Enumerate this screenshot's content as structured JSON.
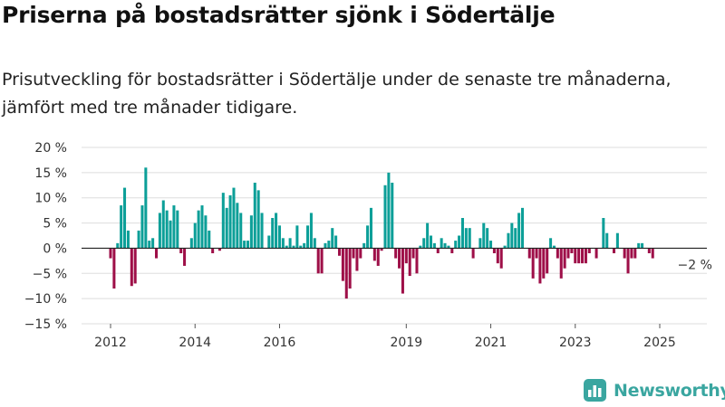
{
  "title": "Priserna på bostadsrätter sjönk i Södertälje",
  "subtitle": "Prisutveckling för bostadsrätter i Södertälje under de senaste tre månaderna, jämfört med tre månader tidigare.",
  "brand": {
    "name": "Newsworthy",
    "icon": "bar-chart-logo-icon"
  },
  "colors": {
    "positive": "#0c9f98",
    "negative": "#9e0f48",
    "grid": "#dddddd",
    "zero_line": "#222222",
    "brand": "#3aa6a0"
  },
  "chart_data": {
    "type": "bar",
    "x_unit": "month",
    "y_unit": "%",
    "ylim": [
      -15,
      20
    ],
    "y_ticks": [
      20,
      15,
      10,
      5,
      0,
      -5,
      -10,
      -15
    ],
    "y_tick_labels": [
      "20 %",
      "15 %",
      "10 %",
      "5 %",
      "0 %",
      "−5 %",
      "−10 %",
      "−15 %"
    ],
    "x_ticks": [
      {
        "label": "2012",
        "x": "2012-01"
      },
      {
        "label": "2014",
        "x": "2014-01"
      },
      {
        "label": "2016",
        "x": "2016-01"
      },
      {
        "label": "2019",
        "x": "2019-01"
      },
      {
        "label": "2021",
        "x": "2021-01"
      },
      {
        "label": "2023",
        "x": "2023-01"
      },
      {
        "label": "2025",
        "x": "2025-01"
      }
    ],
    "grid": "horizontal",
    "series": [
      {
        "start": "2012-01",
        "values": [
          -2,
          -8,
          1,
          8.5,
          12,
          3.5,
          -7.5,
          -7,
          3.5,
          8.5,
          16,
          1.5,
          2,
          -2,
          7,
          9.5,
          7.5,
          5.5,
          8.5,
          7.5,
          -1,
          -3.5,
          0,
          2,
          5,
          7.5,
          8.5,
          6.5,
          3.5,
          -1,
          0,
          -0.5,
          11,
          8,
          10.5,
          12,
          9,
          7,
          1.5,
          1.5,
          6.5,
          13,
          11.5,
          7,
          0,
          2.5,
          6,
          7,
          4.5,
          2,
          0.5,
          2,
          0.5,
          4.5,
          0.5,
          1,
          4.5,
          7,
          2,
          -5,
          -5,
          1,
          1.5,
          4,
          2.5,
          -1.5,
          -6.5,
          -10,
          -8,
          -2,
          -4.5,
          -2,
          1,
          4.5,
          8,
          -2.5,
          -3.5,
          -0.5,
          12.5,
          15,
          13,
          -2,
          -4,
          -9,
          -3,
          -5.5,
          -2,
          -5,
          0.5,
          2,
          5,
          2.5,
          1,
          -1,
          2,
          1,
          0.5,
          -1,
          1.5,
          2.5,
          6,
          4,
          4,
          -2,
          0,
          2,
          5,
          4,
          1.5,
          -1,
          -3,
          -4,
          0.5,
          3,
          5,
          4,
          7,
          8,
          0,
          -2,
          -6,
          -2,
          -7,
          -6,
          -5,
          2,
          0.5,
          -2,
          -6,
          -4,
          -2,
          -1,
          -3,
          -3,
          -3,
          -3,
          -1,
          0,
          -2,
          0,
          6,
          3,
          0,
          -1,
          3,
          0,
          -2,
          -5,
          -2,
          -2,
          1,
          1,
          0,
          -1,
          -2
        ]
      }
    ],
    "annotations": [
      {
        "text": "−2 %",
        "x": "2025-05",
        "y": -2
      }
    ]
  }
}
